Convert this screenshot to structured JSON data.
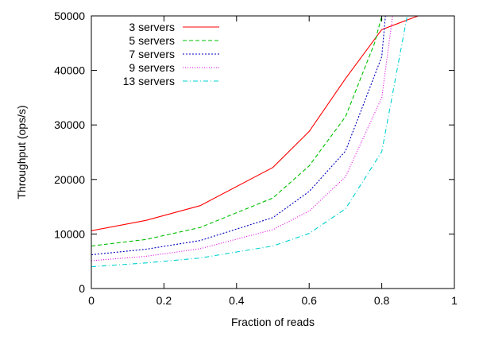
{
  "chart_data": {
    "type": "line",
    "title": "",
    "xlabel": "Fraction of reads",
    "ylabel": "Throughput (ops/s)",
    "xlim": [
      0,
      1
    ],
    "ylim": [
      0,
      50000
    ],
    "xticks": [
      0,
      0.2,
      0.4,
      0.6,
      0.8,
      1
    ],
    "xtick_labels": [
      "0",
      "0.2",
      "0.4",
      "0.6",
      "0.8",
      "1"
    ],
    "yticks": [
      0,
      10000,
      20000,
      30000,
      40000,
      50000
    ],
    "ytick_labels": [
      "0",
      "10000",
      "20000",
      "30000",
      "40000",
      "50000"
    ],
    "legend_position": "top-left",
    "series": [
      {
        "name": "3 servers",
        "color": "#ff0000",
        "dash": "solid",
        "x": [
          0,
          0.15,
          0.3,
          0.5,
          0.6,
          0.7,
          0.8,
          0.9
        ],
        "y": [
          10600,
          12500,
          15200,
          22200,
          28800,
          38500,
          47500,
          50000
        ]
      },
      {
        "name": "5 servers",
        "color": "#00c000",
        "dash": "dashed",
        "x": [
          0,
          0.15,
          0.3,
          0.5,
          0.6,
          0.7,
          0.78,
          0.8
        ],
        "y": [
          7800,
          9000,
          11200,
          16600,
          22500,
          31500,
          45000,
          50000
        ]
      },
      {
        "name": "7 servers",
        "color": "#0000c0",
        "dash": "dotted",
        "x": [
          0,
          0.15,
          0.3,
          0.5,
          0.6,
          0.7,
          0.8,
          0.81
        ],
        "y": [
          6200,
          7200,
          8800,
          13000,
          17800,
          25200,
          42500,
          50000
        ]
      },
      {
        "name": "9 servers",
        "color": "#e000e0",
        "dash": "dotted-fine",
        "x": [
          0,
          0.15,
          0.3,
          0.5,
          0.6,
          0.7,
          0.8,
          0.83
        ],
        "y": [
          5100,
          5900,
          7300,
          10800,
          14200,
          20500,
          35000,
          50000
        ]
      },
      {
        "name": "13 servers",
        "color": "#00d0d0",
        "dash": "dashdot",
        "x": [
          0,
          0.15,
          0.3,
          0.5,
          0.6,
          0.7,
          0.8,
          0.87
        ],
        "y": [
          4000,
          4700,
          5600,
          7800,
          10100,
          14600,
          25100,
          50000
        ]
      }
    ]
  }
}
